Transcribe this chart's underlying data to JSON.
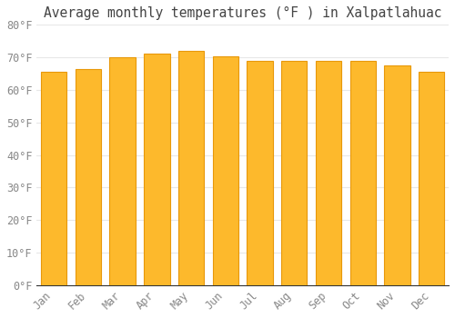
{
  "title": "Average monthly temperatures (°F ) in Xalpatlahuac",
  "months": [
    "Jan",
    "Feb",
    "Mar",
    "Apr",
    "May",
    "Jun",
    "Jul",
    "Aug",
    "Sep",
    "Oct",
    "Nov",
    "Dec"
  ],
  "values": [
    65.5,
    66.5,
    70.0,
    71.2,
    72.0,
    70.2,
    69.0,
    69.0,
    69.0,
    69.0,
    67.5,
    65.5
  ],
  "bar_color": "#FDB92C",
  "bar_edge_color": "#E8980A",
  "background_color": "#FFFFFF",
  "plot_bg_color": "#FFFFFF",
  "grid_color": "#E8E8E8",
  "ylim": [
    0,
    80
  ],
  "yticks": [
    0,
    10,
    20,
    30,
    40,
    50,
    60,
    70,
    80
  ],
  "ytick_labels": [
    "0°F",
    "10°F",
    "20°F",
    "30°F",
    "40°F",
    "50°F",
    "60°F",
    "70°F",
    "80°F"
  ],
  "tick_color": "#888888",
  "title_fontsize": 10.5,
  "axis_fontsize": 8.5,
  "bar_width": 0.75
}
